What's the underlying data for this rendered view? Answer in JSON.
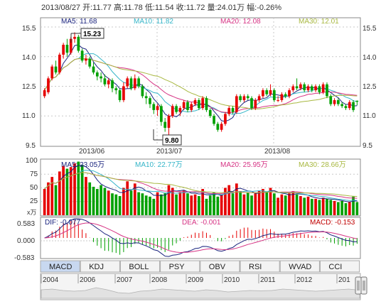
{
  "header": {
    "date": "2013/08/27",
    "open": "开:11.77",
    "high": "高:11.78",
    "low": "低:11.54",
    "close": "收:11.72",
    "volume": "量:24.01万",
    "change": "幅:-0.26%"
  },
  "colors": {
    "up": "#e60000",
    "down": "#00a000",
    "ma5": "#1a237e",
    "ma10": "#35b5c8",
    "ma20": "#d63384",
    "ma30": "#a8b840",
    "grid": "#c8c8c8",
    "axis": "#c00000"
  },
  "price_panel": {
    "legend": {
      "ma5": "MA5: 11.68",
      "ma10": "MA10: 11.82",
      "ma20": "MA20: 12.08",
      "ma30": "MA30: 12.01"
    },
    "y_ticks": [
      "15.5",
      "14.0",
      "12.5",
      "11.0",
      "9.5"
    ],
    "x_ticks": [
      "2013/06",
      "2013/07",
      "2013/08"
    ],
    "max_label": "15.23",
    "min_label": "9.80"
  },
  "volume_panel": {
    "legend": {
      "ma5": "MA5: 23.05万",
      "ma10": "MA10: 22.77万",
      "ma20": "MA20: 25.95万",
      "ma30": "MA30: 28.66万"
    },
    "y_ticks": [
      "100",
      "75",
      "50",
      "25"
    ],
    "unit": "x万"
  },
  "macd_panel": {
    "dif": "DIF: -0.077",
    "dea": "DEA: -0.001",
    "macd": "MACD: -0.153",
    "y_ticks": [
      "0.583",
      "0.000",
      "-0.583"
    ]
  },
  "tabs": [
    "MACD",
    "KDJ",
    "BOLL",
    "PSY",
    "OBV",
    "RSI",
    "WVAD",
    "CCI"
  ],
  "active_tab": "MACD",
  "timeline_years": [
    "2004",
    "2006",
    "2007",
    "2008",
    "2009",
    "2010",
    "2011",
    "2012",
    "201"
  ],
  "chart_data": {
    "type": "candlestick",
    "candles": [
      [
        12.0,
        12.3,
        11.9,
        12.4
      ],
      [
        12.2,
        12.9,
        12.1,
        13.0
      ],
      [
        12.9,
        13.5,
        12.8,
        13.6
      ],
      [
        13.5,
        13.2,
        13.1,
        13.8
      ],
      [
        13.2,
        14.1,
        13.1,
        14.2
      ],
      [
        14.1,
        14.6,
        13.9,
        14.7
      ],
      [
        14.6,
        14.2,
        14.0,
        14.9
      ],
      [
        14.2,
        14.9,
        14.1,
        15.0
      ],
      [
        14.9,
        15.0,
        14.7,
        15.23
      ],
      [
        15.0,
        14.3,
        14.2,
        15.1
      ],
      [
        14.3,
        13.8,
        13.7,
        14.4
      ],
      [
        13.8,
        13.9,
        13.6,
        14.1
      ],
      [
        13.9,
        13.5,
        13.4,
        14.0
      ],
      [
        13.5,
        13.2,
        13.1,
        13.7
      ],
      [
        13.2,
        13.0,
        12.8,
        13.3
      ],
      [
        13.0,
        12.9,
        12.7,
        13.2
      ],
      [
        12.9,
        12.6,
        12.5,
        13.1
      ],
      [
        12.6,
        12.8,
        12.4,
        12.9
      ],
      [
        12.8,
        12.4,
        12.2,
        12.9
      ],
      [
        12.4,
        12.3,
        12.1,
        12.5
      ],
      [
        12.3,
        11.8,
        11.7,
        12.4
      ],
      [
        11.8,
        12.5,
        11.7,
        12.7
      ],
      [
        12.5,
        12.9,
        12.4,
        13.0
      ],
      [
        12.9,
        12.4,
        12.3,
        13.0
      ],
      [
        12.4,
        12.9,
        12.3,
        13.1
      ],
      [
        12.9,
        12.5,
        12.4,
        13.0
      ],
      [
        12.5,
        12.0,
        11.9,
        12.6
      ],
      [
        12.0,
        11.9,
        11.6,
        12.2
      ],
      [
        11.9,
        11.6,
        11.4,
        12.0
      ],
      [
        11.6,
        11.3,
        11.1,
        11.7
      ],
      [
        11.3,
        11.5,
        11.0,
        11.6
      ],
      [
        11.5,
        10.7,
        10.5,
        11.6
      ],
      [
        10.7,
        10.4,
        10.2,
        10.9
      ],
      [
        10.4,
        11.0,
        9.8,
        11.1
      ],
      [
        11.0,
        11.5,
        10.9,
        11.6
      ],
      [
        11.5,
        11.2,
        11.1,
        11.6
      ],
      [
        11.2,
        11.4,
        11.0,
        11.5
      ],
      [
        11.4,
        11.7,
        11.3,
        11.8
      ],
      [
        11.7,
        11.3,
        11.2,
        11.8
      ],
      [
        11.3,
        11.6,
        11.2,
        11.7
      ],
      [
        11.6,
        11.8,
        11.5,
        11.9
      ],
      [
        11.8,
        11.4,
        11.3,
        11.9
      ],
      [
        11.4,
        11.9,
        11.3,
        12.0
      ],
      [
        11.9,
        11.3,
        11.2,
        12.0
      ],
      [
        11.3,
        11.0,
        10.9,
        11.4
      ],
      [
        11.0,
        10.6,
        10.5,
        11.1
      ],
      [
        10.6,
        10.3,
        10.2,
        10.7
      ],
      [
        10.3,
        10.6,
        10.2,
        10.7
      ],
      [
        10.6,
        11.1,
        10.5,
        11.2
      ],
      [
        11.1,
        11.4,
        11.0,
        11.5
      ],
      [
        11.4,
        11.2,
        11.1,
        11.5
      ],
      [
        11.2,
        12.0,
        11.1,
        12.1
      ],
      [
        12.0,
        11.8,
        11.7,
        12.1
      ],
      [
        11.8,
        12.0,
        11.7,
        12.1
      ],
      [
        12.0,
        11.9,
        11.8,
        12.1
      ],
      [
        11.9,
        11.4,
        11.3,
        12.0
      ],
      [
        11.4,
        11.8,
        11.3,
        11.9
      ],
      [
        11.8,
        12.0,
        11.7,
        12.1
      ],
      [
        12.0,
        12.3,
        11.9,
        12.4
      ],
      [
        12.3,
        12.1,
        12.0,
        12.4
      ],
      [
        12.1,
        12.3,
        12.0,
        12.6
      ],
      [
        12.3,
        11.8,
        11.7,
        12.4
      ],
      [
        11.8,
        11.8,
        11.7,
        12.0
      ],
      [
        11.8,
        12.1,
        11.7,
        12.2
      ],
      [
        12.1,
        12.0,
        11.9,
        12.2
      ],
      [
        12.0,
        12.3,
        11.9,
        12.4
      ],
      [
        12.3,
        12.5,
        12.2,
        12.6
      ],
      [
        12.5,
        12.4,
        12.3,
        12.9
      ],
      [
        12.4,
        12.6,
        12.3,
        12.7
      ],
      [
        12.6,
        12.3,
        12.2,
        12.7
      ],
      [
        12.3,
        12.5,
        12.2,
        12.6
      ],
      [
        12.5,
        12.3,
        12.2,
        12.6
      ],
      [
        12.3,
        12.5,
        12.2,
        12.6
      ],
      [
        12.5,
        12.2,
        12.1,
        12.6
      ],
      [
        12.2,
        12.6,
        12.1,
        12.7
      ],
      [
        12.6,
        12.0,
        11.9,
        12.7
      ],
      [
        12.0,
        11.6,
        11.5,
        12.1
      ],
      [
        11.6,
        11.8,
        11.5,
        11.9
      ],
      [
        11.8,
        11.6,
        11.5,
        11.9
      ],
      [
        11.6,
        11.5,
        11.4,
        11.7
      ],
      [
        11.5,
        11.4,
        11.3,
        11.6
      ],
      [
        11.4,
        11.7,
        11.3,
        11.8
      ],
      [
        11.7,
        11.3,
        11.2,
        11.8
      ],
      [
        11.77,
        11.72,
        11.54,
        11.78
      ]
    ],
    "volume": [
      48,
      60,
      70,
      55,
      80,
      90,
      85,
      88,
      95,
      98,
      92,
      70,
      60,
      52,
      48,
      55,
      50,
      45,
      40,
      38,
      35,
      50,
      62,
      45,
      58,
      42,
      40,
      36,
      34,
      30,
      42,
      38,
      40,
      55,
      50,
      38,
      42,
      45,
      40,
      36,
      38,
      35,
      48,
      30,
      36,
      42,
      34,
      38,
      50,
      55,
      40,
      58,
      44,
      38,
      42,
      36,
      40,
      45,
      48,
      42,
      50,
      40,
      32,
      38,
      36,
      40,
      44,
      38,
      35,
      32,
      34,
      30,
      30,
      28,
      32,
      30,
      28,
      26,
      24,
      26,
      22,
      24,
      34,
      24
    ],
    "ylim_price": [
      9.5,
      15.5
    ],
    "ylim_volume": [
      0,
      100
    ],
    "ylim_macd": [
      -0.583,
      0.583
    ]
  }
}
